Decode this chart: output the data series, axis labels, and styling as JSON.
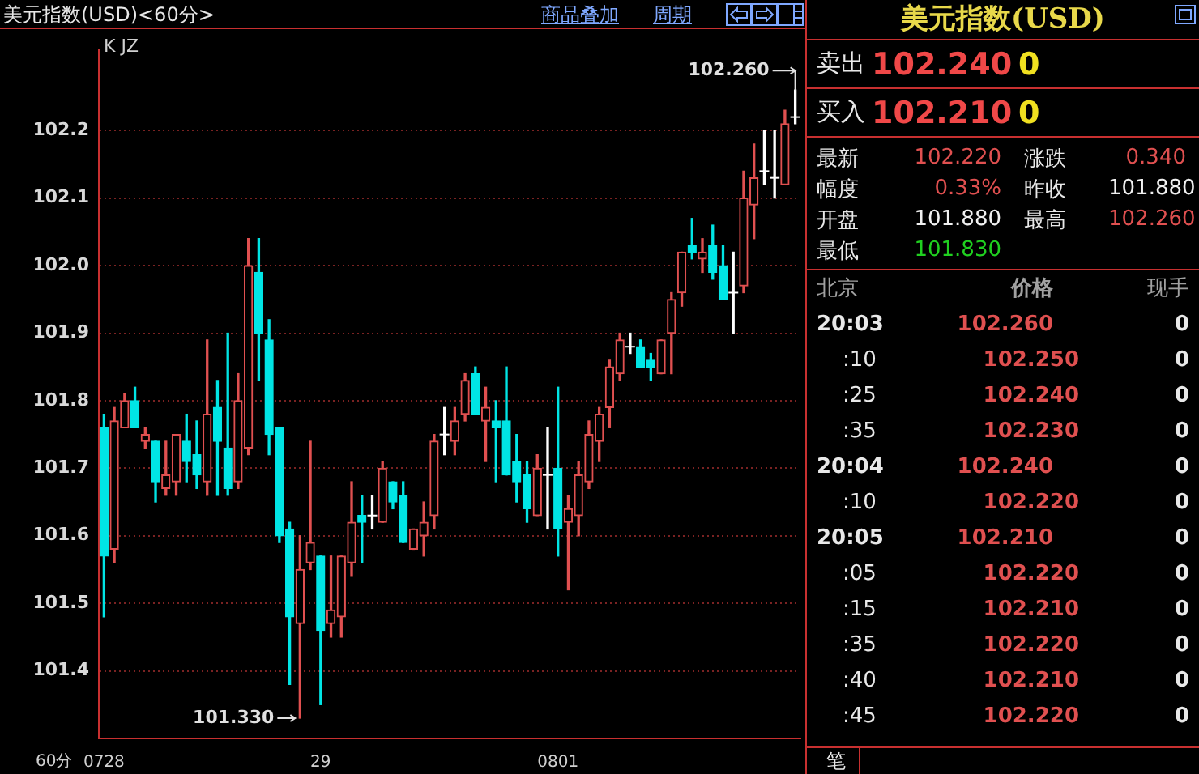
{
  "chart_data": [
    {
      "type": "candlestick",
      "title": "美元指数(USD)<60分>",
      "annotations": [
        "商品叠加",
        "周期",
        "K JZ",
        "60分",
        "101.330",
        "102.260"
      ],
      "categories": [
        "0728",
        null,
        null,
        null,
        null,
        null,
        null,
        null,
        null,
        null,
        null,
        null,
        null,
        null,
        null,
        null,
        null,
        null,
        null,
        null,
        null,
        "29",
        null,
        null,
        null,
        null,
        null,
        null,
        null,
        null,
        null,
        null,
        null,
        null,
        null,
        null,
        null,
        null,
        null,
        null,
        null,
        null,
        null,
        null,
        "0801",
        null,
        null,
        null,
        null,
        null,
        null,
        null,
        null,
        null,
        null,
        null,
        null,
        null,
        null,
        null,
        null,
        null,
        null,
        null,
        null,
        null,
        null,
        null
      ],
      "ohlc": [
        [
          101.76,
          101.78,
          101.48,
          101.57
        ],
        [
          101.58,
          101.79,
          101.56,
          101.77
        ],
        [
          101.76,
          101.81,
          101.76,
          101.8
        ],
        [
          101.8,
          101.82,
          101.76,
          101.76
        ],
        [
          101.74,
          101.76,
          101.73,
          101.75
        ],
        [
          101.74,
          101.74,
          101.65,
          101.68
        ],
        [
          101.67,
          101.74,
          101.66,
          101.69
        ],
        [
          101.68,
          101.75,
          101.66,
          101.75
        ],
        [
          101.74,
          101.78,
          101.68,
          101.71
        ],
        [
          101.72,
          101.77,
          101.67,
          101.69
        ],
        [
          101.68,
          101.89,
          101.66,
          101.78
        ],
        [
          101.79,
          101.83,
          101.66,
          101.74
        ],
        [
          101.73,
          101.9,
          101.66,
          101.67
        ],
        [
          101.68,
          101.84,
          101.67,
          101.8
        ],
        [
          101.73,
          102.04,
          101.72,
          102.0
        ],
        [
          101.99,
          102.04,
          101.83,
          101.9
        ],
        [
          101.89,
          101.92,
          101.72,
          101.75
        ],
        [
          101.76,
          101.76,
          101.59,
          101.6
        ],
        [
          101.61,
          101.62,
          101.38,
          101.48
        ],
        [
          101.47,
          101.6,
          101.33,
          101.55
        ],
        [
          101.56,
          101.74,
          101.55,
          101.59
        ],
        [
          101.57,
          101.57,
          101.35,
          101.46
        ],
        [
          101.47,
          101.57,
          101.45,
          101.49
        ],
        [
          101.48,
          101.57,
          101.45,
          101.57
        ],
        [
          101.56,
          101.68,
          101.54,
          101.62
        ],
        [
          101.63,
          101.66,
          101.56,
          101.62
        ],
        [
          101.63,
          101.66,
          101.61,
          101.63
        ],
        [
          101.62,
          101.71,
          101.62,
          101.7
        ],
        [
          101.68,
          101.68,
          101.64,
          101.65
        ],
        [
          101.66,
          101.68,
          101.59,
          101.59
        ],
        [
          101.58,
          101.61,
          101.58,
          101.61
        ],
        [
          101.6,
          101.65,
          101.57,
          101.62
        ],
        [
          101.63,
          101.75,
          101.61,
          101.74
        ],
        [
          101.75,
          101.79,
          101.72,
          101.75
        ],
        [
          101.74,
          101.79,
          101.72,
          101.77
        ],
        [
          101.78,
          101.84,
          101.77,
          101.83
        ],
        [
          101.84,
          101.85,
          101.78,
          101.78
        ],
        [
          101.77,
          101.82,
          101.71,
          101.79
        ],
        [
          101.77,
          101.8,
          101.68,
          101.76
        ],
        [
          101.77,
          101.85,
          101.69,
          101.69
        ],
        [
          101.71,
          101.75,
          101.65,
          101.68
        ],
        [
          101.69,
          101.71,
          101.62,
          101.64
        ],
        [
          101.63,
          101.72,
          101.63,
          101.7
        ],
        [
          101.69,
          101.76,
          101.61,
          101.69
        ],
        [
          101.7,
          101.82,
          101.57,
          101.61
        ],
        [
          101.62,
          101.66,
          101.52,
          101.64
        ],
        [
          101.63,
          101.71,
          101.6,
          101.69
        ],
        [
          101.68,
          101.77,
          101.67,
          101.75
        ],
        [
          101.74,
          101.79,
          101.71,
          101.78
        ],
        [
          101.79,
          101.86,
          101.76,
          101.85
        ],
        [
          101.84,
          101.9,
          101.83,
          101.89
        ],
        [
          101.88,
          101.9,
          101.87,
          101.88
        ],
        [
          101.88,
          101.89,
          101.85,
          101.85
        ],
        [
          101.86,
          101.87,
          101.83,
          101.85
        ],
        [
          101.84,
          101.89,
          101.84,
          101.89
        ],
        [
          101.9,
          101.96,
          101.84,
          101.95
        ],
        [
          101.96,
          102.02,
          101.94,
          102.02
        ],
        [
          102.03,
          102.07,
          102.01,
          102.02
        ],
        [
          102.01,
          102.04,
          101.99,
          102.02
        ],
        [
          102.03,
          102.06,
          101.98,
          101.99
        ],
        [
          102.0,
          102.03,
          101.95,
          101.95
        ],
        [
          101.96,
          102.02,
          101.9,
          101.96
        ],
        [
          101.97,
          102.14,
          101.96,
          102.1
        ],
        [
          102.09,
          102.18,
          102.04,
          102.13
        ],
        [
          102.14,
          102.2,
          102.12,
          102.14
        ],
        [
          102.13,
          102.2,
          102.1,
          102.13
        ],
        [
          102.12,
          102.23,
          102.12,
          102.21
        ],
        [
          102.22,
          102.26,
          102.21,
          102.22
        ]
      ],
      "colors": [
        "#00e5e5",
        "#e05050",
        "#e05050",
        "#00e5e5",
        "#e05050",
        "#00e5e5",
        "#e05050",
        "#e05050",
        "#00e5e5",
        "#00e5e5",
        "#e05050",
        "#00e5e5",
        "#00e5e5",
        "#e05050",
        "#e05050",
        "#00e5e5",
        "#00e5e5",
        "#00e5e5",
        "#00e5e5",
        "#e05050",
        "#e05050",
        "#00e5e5",
        "#e05050",
        "#e05050",
        "#e05050",
        "#00e5e5",
        "#ffffff",
        "#e05050",
        "#00e5e5",
        "#00e5e5",
        "#e05050",
        "#e05050",
        "#e05050",
        "#ffffff",
        "#e05050",
        "#e05050",
        "#00e5e5",
        "#e05050",
        "#00e5e5",
        "#00e5e5",
        "#00e5e5",
        "#00e5e5",
        "#e05050",
        "#ffffff",
        "#00e5e5",
        "#e05050",
        "#e05050",
        "#e05050",
        "#e05050",
        "#e05050",
        "#e05050",
        "#ffffff",
        "#00e5e5",
        "#00e5e5",
        "#e05050",
        "#e05050",
        "#e05050",
        "#00e5e5",
        "#e05050",
        "#00e5e5",
        "#00e5e5",
        "#ffffff",
        "#e05050",
        "#e05050",
        "#ffffff",
        "#ffffff",
        "#e05050",
        "#ffffff"
      ],
      "ylim": [
        101.3,
        102.32
      ],
      "yticks": [
        101.4,
        101.5,
        101.6,
        101.7,
        101.8,
        101.9,
        {
          "value": 102,
          "label": "102.0"
        },
        102.1,
        102.2
      ],
      "grid": "y"
    },
    {
      "type": "other",
      "title": "美元指数(USD)",
      "annotations": [
        "卖出 102.240 0",
        "买入 102.210 0",
        "最新 102.220 涨跌 0.340",
        "幅度 0.33% 昨收 101.880",
        "开盘 101.880 最高 102.260",
        "最低 101.830",
        "北京 价格 现手",
        "20:03 102.260 0",
        ":10 102.250 0",
        ":25 102.240 0",
        ":35 102.230 0",
        "20:04 102.240 0",
        ":10 102.220 0",
        "20:05 102.210 0",
        ":05 102.220 0",
        ":15 102.210 0",
        ":35 102.220 0",
        ":40 102.210 0",
        ":45 102.220 0",
        "笔"
      ]
    }
  ]
}
